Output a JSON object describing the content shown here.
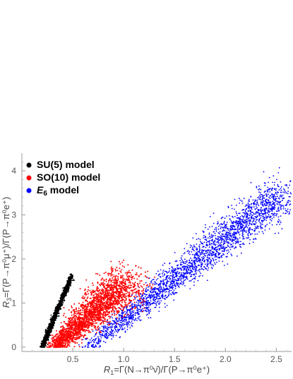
{
  "chart_data": {
    "type": "scatter",
    "title": "",
    "xlabel": "R₁=Γ(N→π⁰ν̄)/Γ(P→π⁰e⁺)",
    "xlabel_parts": {
      "sym": "R",
      "sub": "1",
      "rest": "=Γ(N→π⁰ν̄)/Γ(P→π⁰e⁺)"
    },
    "ylabel": "R₃=Γ(P→π⁰μ⁺)/Γ(P→π⁰e⁺)",
    "ylabel_parts": {
      "sym": "R",
      "sub": "3",
      "rest": "=Γ(P→π⁰μ⁺)/Γ(P→π⁰e⁺)"
    },
    "xlim": [
      0.0,
      2.65
    ],
    "ylim": [
      -0.1,
      4.4
    ],
    "xticks": [
      0.5,
      1.0,
      1.5,
      2.0,
      2.5
    ],
    "xtick_labels": [
      "0.5",
      "1.0",
      "1.5",
      "2.0",
      "2.5"
    ],
    "yticks": [
      0,
      1,
      2,
      3,
      4
    ],
    "ytick_labels": [
      "0",
      "1",
      "2",
      "3",
      "4"
    ],
    "grid": false,
    "legend_position": "top-left",
    "series": [
      {
        "name": "SU(5) model",
        "color": "#000000",
        "x_range": [
          0.19,
          0.5
        ],
        "y_range": [
          0.0,
          1.65
        ],
        "trend": "narrow band rising steeply from (0.19, 0.0) to (0.50, 1.65)"
      },
      {
        "name": "SO(10) model",
        "color": "#ff0000",
        "x_range": [
          0.25,
          1.2
        ],
        "y_range": [
          0.0,
          1.85
        ],
        "trend": "dense cloud from (0.3, 0.0) up to about (1.1, 1.8)"
      },
      {
        "name": "E6 model",
        "name_parts": {
          "sym": "E",
          "sub": "6",
          "rest": " model"
        },
        "color": "#0000ff",
        "x_range": [
          0.45,
          2.62
        ],
        "y_range": [
          0.0,
          3.7
        ],
        "trend": "broad band from (0.6, 0.0) rising to (2.6, 3.6)"
      }
    ]
  }
}
